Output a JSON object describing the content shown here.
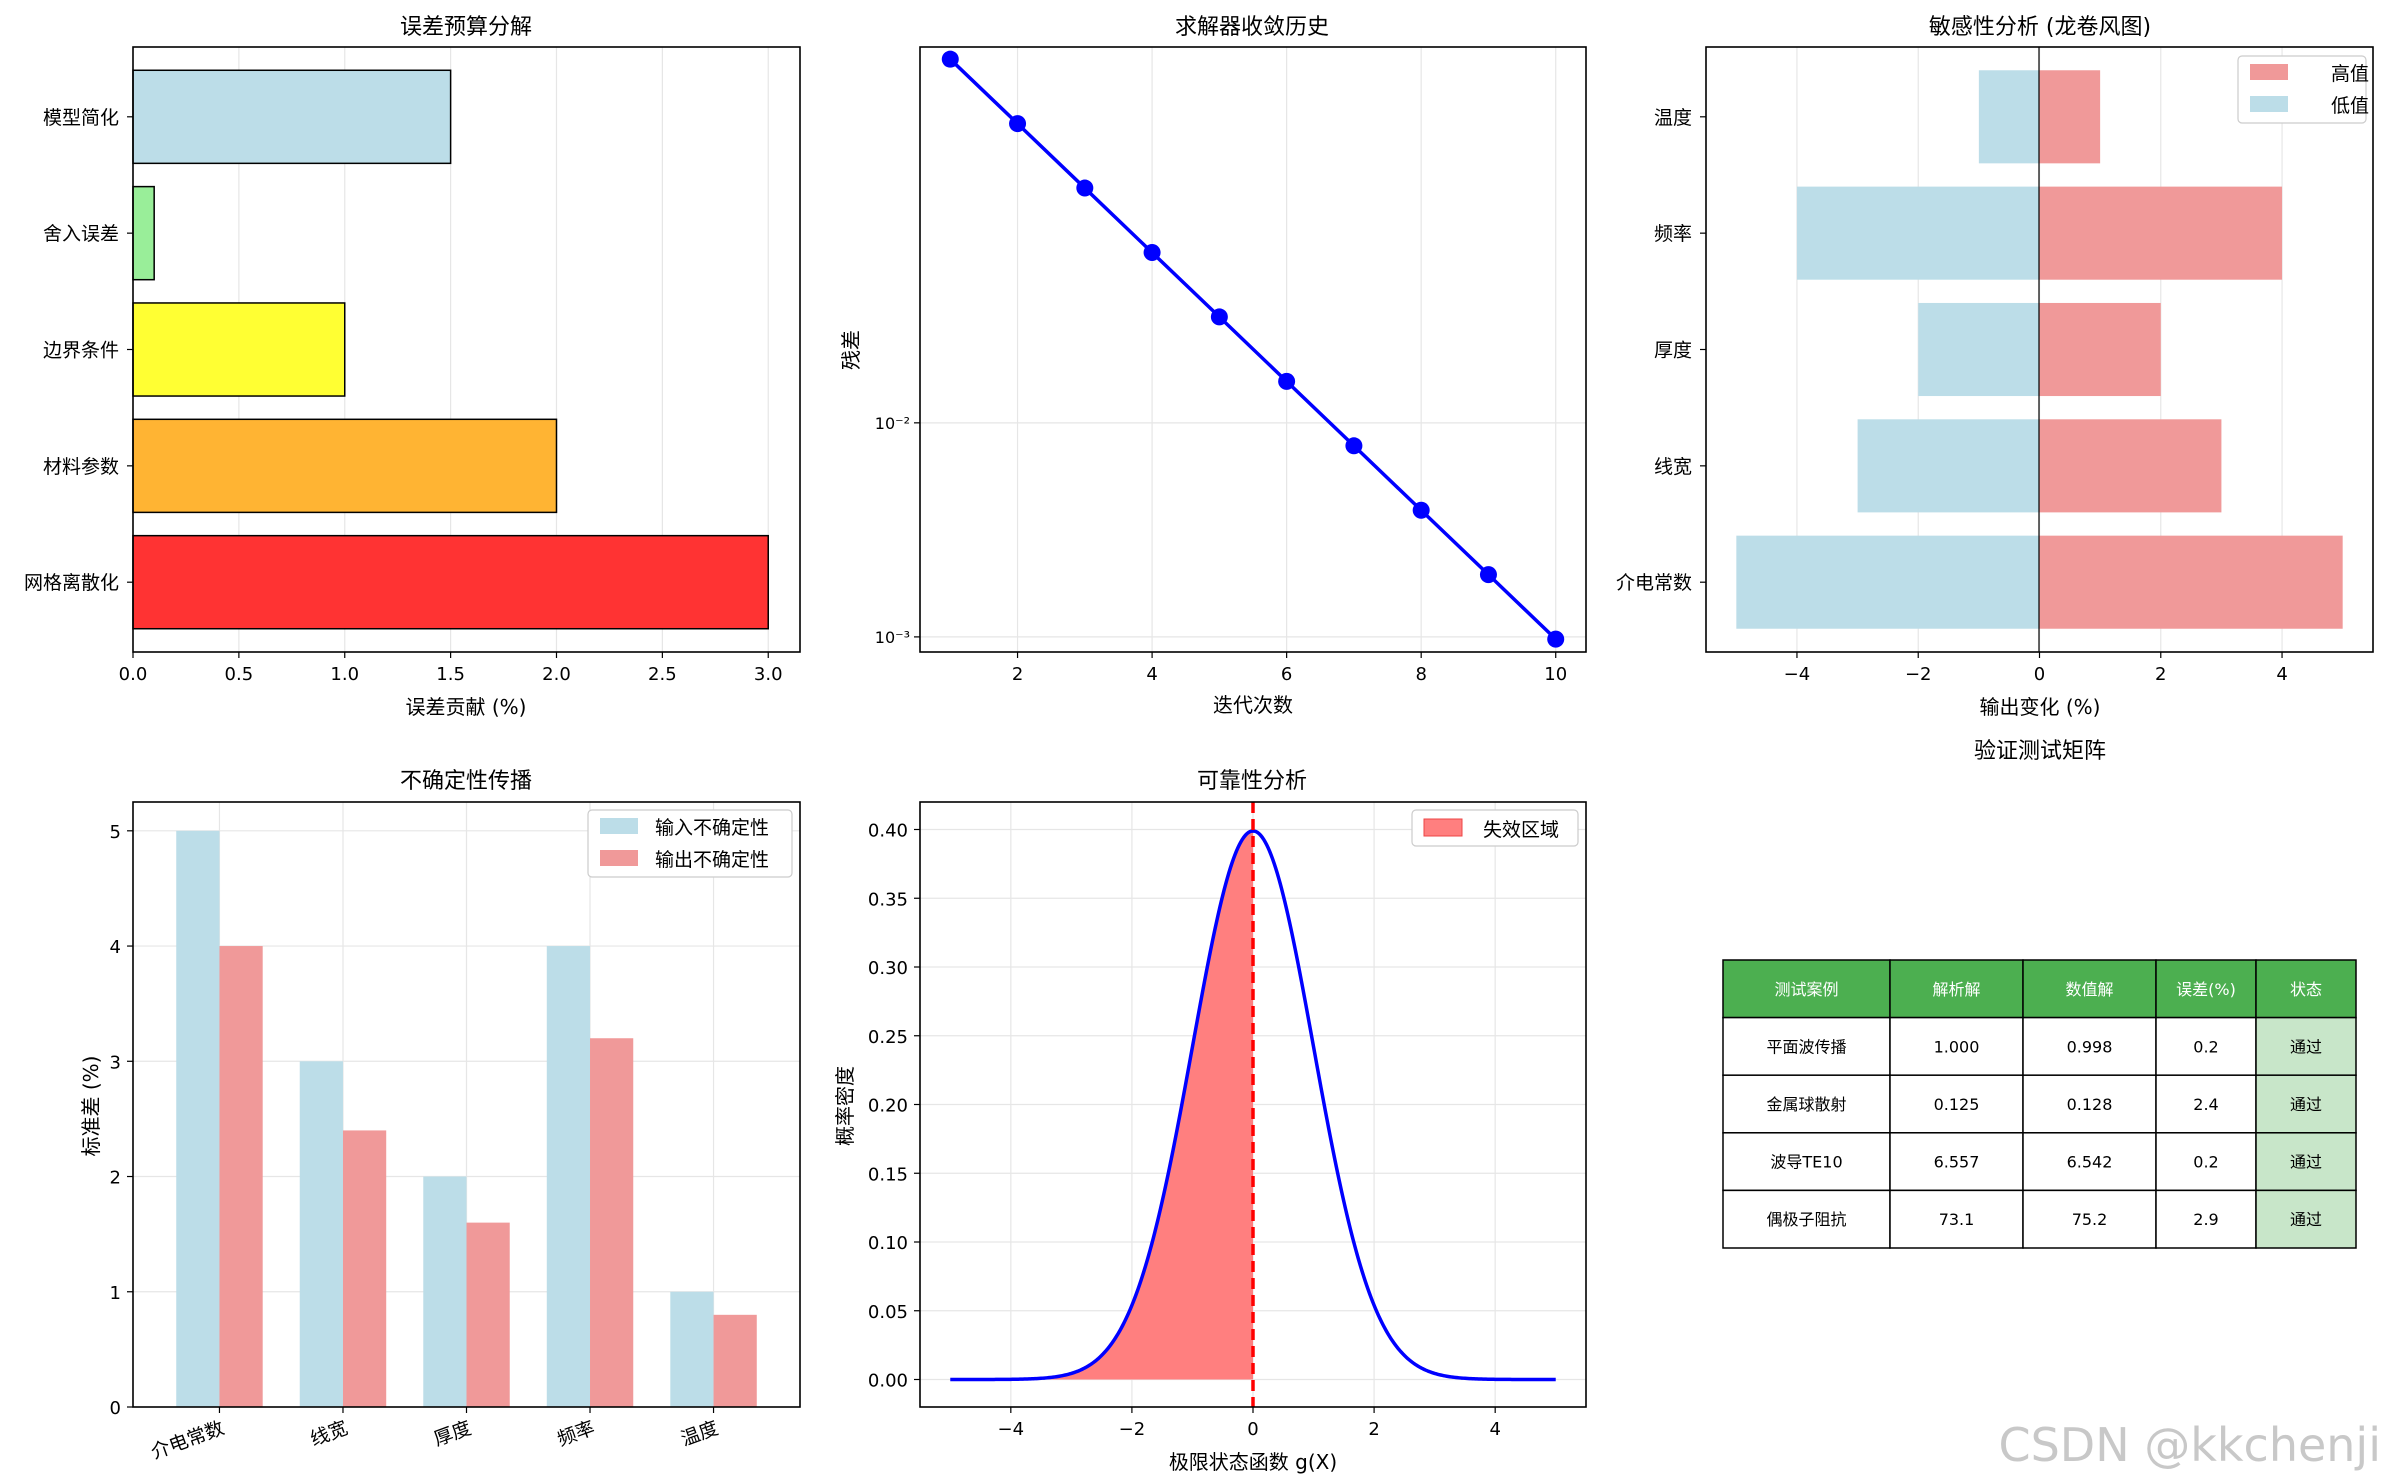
{
  "chart_data": [
    {
      "type": "bar",
      "orientation": "horizontal",
      "title": "误差预算分解",
      "xlabel": "误差贡献 (%)",
      "ylabel": "",
      "categories": [
        "网格离散化",
        "材料参数",
        "边界条件",
        "舍入误差",
        "模型简化"
      ],
      "values": [
        3.0,
        2.0,
        1.0,
        0.1,
        1.5
      ],
      "colors": [
        "#ff3333",
        "#ffb433",
        "#ffff33",
        "#99ee99",
        "#bcdde8"
      ],
      "xlim": [
        0,
        3.15
      ],
      "xticks": [
        "0.0",
        "0.5",
        "1.0",
        "1.5",
        "2.0",
        "2.5",
        "3.0"
      ],
      "grid": true
    },
    {
      "type": "line",
      "title": "求解器收敛历史",
      "xlabel": "迭代次数",
      "ylabel": "残差",
      "yscale": "log",
      "x": [
        1,
        2,
        3,
        4,
        5,
        6,
        7,
        8,
        9,
        10
      ],
      "y": [
        0.5,
        0.25,
        0.125,
        0.0625,
        0.03125,
        0.015625,
        0.0078125,
        0.00390625,
        0.001953125,
        0.0009765625
      ],
      "xlim": [
        0.55,
        10.45
      ],
      "ylim": [
        0.00085,
        0.57
      ],
      "xticks": [
        "2",
        "4",
        "6",
        "8",
        "10"
      ],
      "yticks": [
        "10⁻²",
        "10⁻³",
        "10⁻⁴"
      ],
      "color": "#0000ff",
      "grid": true
    },
    {
      "type": "bar",
      "orientation": "horizontal",
      "title": "敏感性分析 (龙卷风图)",
      "xlabel": "输出变化 (%)",
      "ylabel": "",
      "categories": [
        "介电常数",
        "线宽",
        "厚度",
        "频率",
        "温度"
      ],
      "series": [
        {
          "name": "高值",
          "values": [
            5,
            3,
            2,
            4,
            1
          ],
          "color": "#f09999"
        },
        {
          "name": "低值",
          "values": [
            -5,
            -3,
            -2,
            -4,
            -1
          ],
          "color": "#bcdde8"
        }
      ],
      "xlim": [
        -5.5,
        5.5
      ],
      "xticks": [
        "−4",
        "−2",
        "0",
        "2",
        "4"
      ],
      "legend": "top-right",
      "grid": true
    },
    {
      "type": "bar",
      "title": "不确定性传播",
      "xlabel": "",
      "ylabel": "标准差 (%)",
      "categories": [
        "介电常数",
        "线宽",
        "厚度",
        "频率",
        "温度"
      ],
      "series": [
        {
          "name": "输入不确定性",
          "values": [
            5,
            3,
            2,
            4,
            1
          ],
          "color": "#bcdde8"
        },
        {
          "name": "输出不确定性",
          "values": [
            4,
            2.4,
            1.6,
            3.2,
            0.8
          ],
          "color": "#f09999"
        }
      ],
      "ylim": [
        0,
        5.25
      ],
      "yticks": [
        "0",
        "1",
        "2",
        "3",
        "4",
        "5"
      ],
      "legend": "top-right",
      "grid": true
    },
    {
      "type": "area",
      "title": "可靠性分析",
      "xlabel": "极限状态函数 g(X)",
      "ylabel": "概率密度",
      "curve": "standard normal pdf",
      "x_range": [
        -5,
        5
      ],
      "xlim": [
        -5.5,
        5.5
      ],
      "ylim": [
        -0.02,
        0.42
      ],
      "xticks": [
        "−4",
        "−2",
        "0",
        "2",
        "4"
      ],
      "yticks": [
        "0.00",
        "0.05",
        "0.10",
        "0.15",
        "0.20",
        "0.25",
        "0.30",
        "0.35",
        "0.40"
      ],
      "threshold": 0,
      "series": [
        {
          "name": "失效区域",
          "fill_to": 0,
          "color": "#ff7f7f"
        }
      ],
      "line_color": "#0000ff",
      "legend": "top-right",
      "grid": true
    },
    {
      "type": "table",
      "title": "验证测试矩阵",
      "columns": [
        "测试案例",
        "解析解",
        "数值解",
        "误差(%)",
        "状态"
      ],
      "rows": [
        [
          "平面波传播",
          "1.000",
          "0.998",
          "0.2",
          "通过"
        ],
        [
          "金属球散射",
          "0.125",
          "0.128",
          "2.4",
          "通过"
        ],
        [
          "波导TE10",
          "6.557",
          "6.542",
          "0.2",
          "通过"
        ],
        [
          "偶极子阻抗",
          "73.1",
          "75.2",
          "2.9",
          "通过"
        ]
      ],
      "header_color": "#4caf50",
      "status_color": "#c8e6c9"
    }
  ],
  "watermark": "CSDN @kkchenji"
}
